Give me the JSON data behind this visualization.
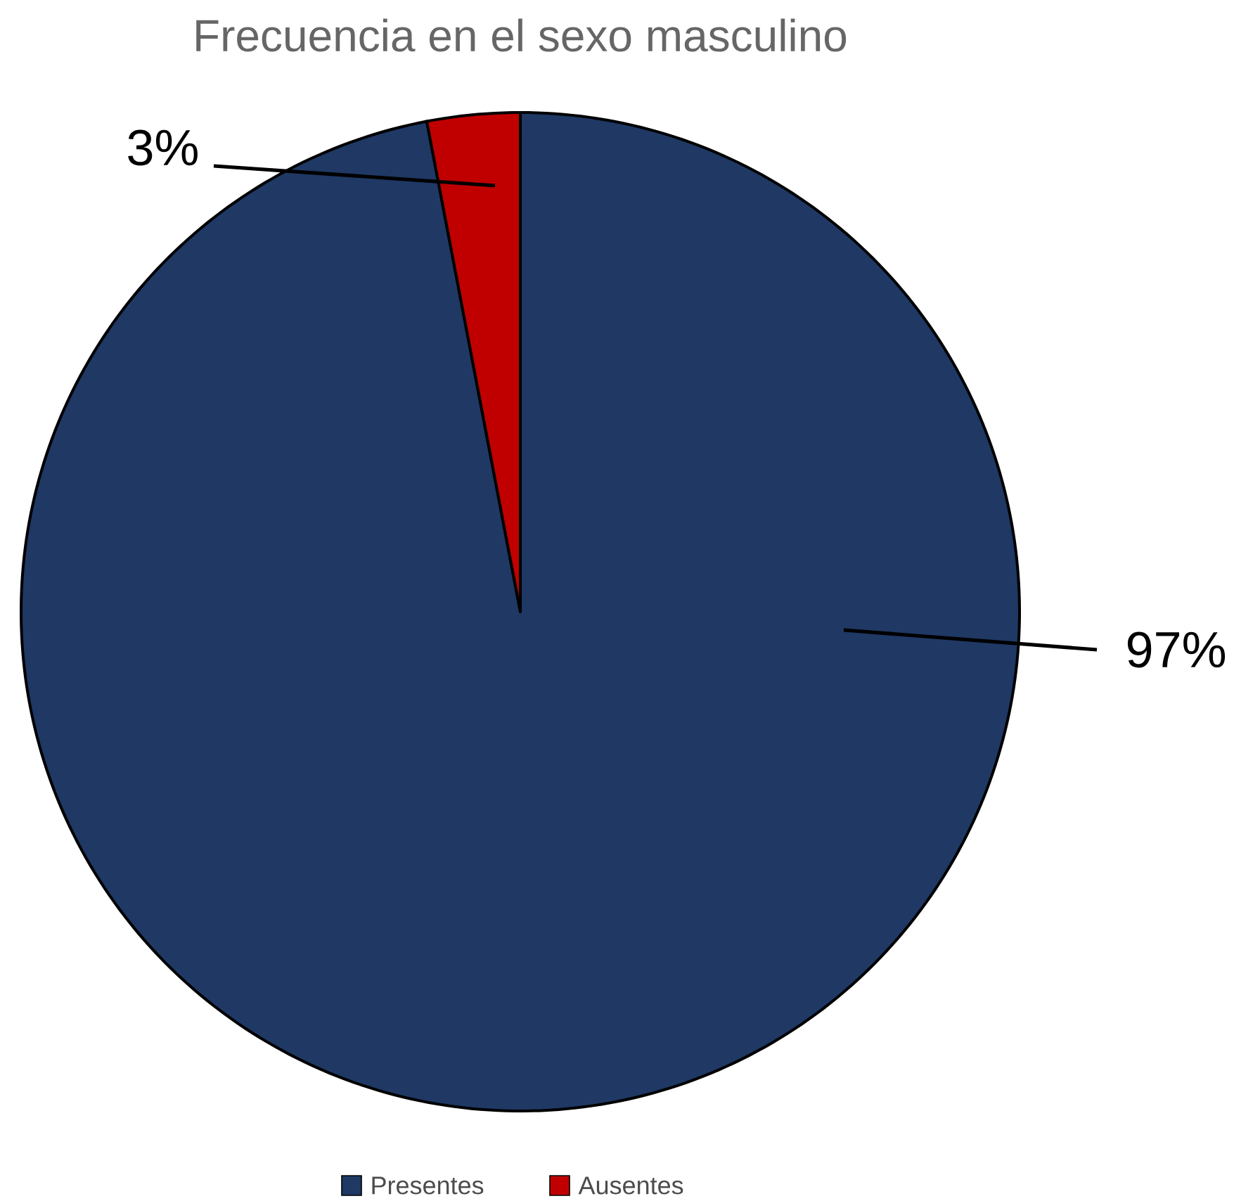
{
  "chart_data": {
    "type": "pie",
    "title": "Frecuencia  en el sexo masculino",
    "categories": [
      "Presentes",
      "Ausentes"
    ],
    "values": [
      97,
      3
    ],
    "colors": [
      "#1f3864",
      "#c00000"
    ],
    "value_labels": [
      "97%",
      "3%"
    ],
    "legend": "bottom"
  }
}
